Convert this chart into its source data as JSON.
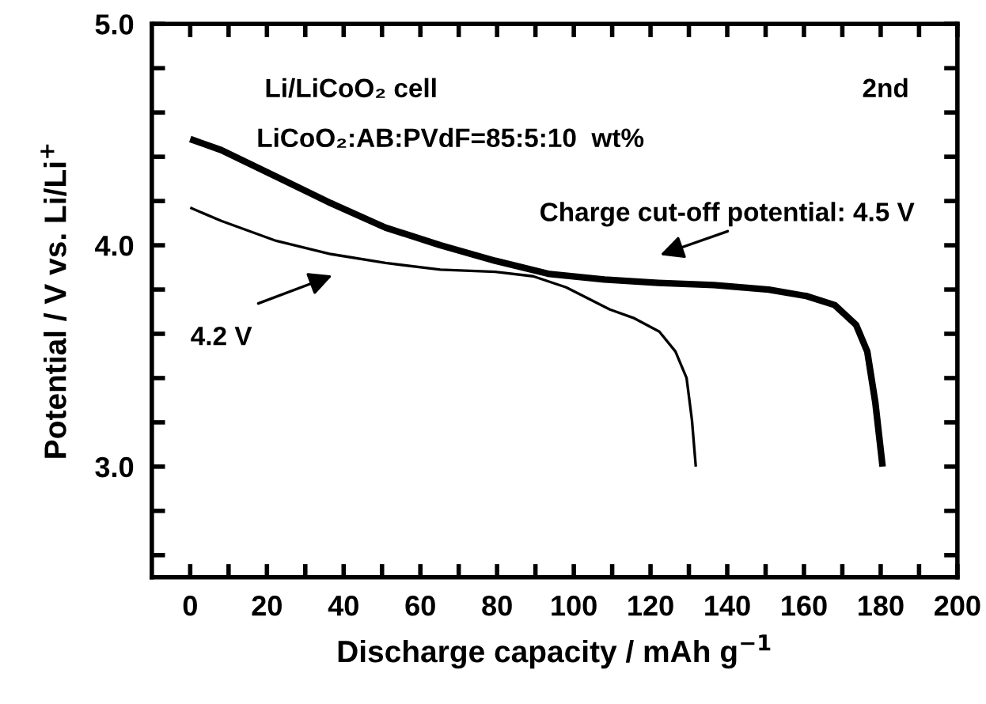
{
  "chart_data": {
    "type": "line",
    "xlabel": "Discharge capacity / mAh g$^{−1}$",
    "ylabel": "Potential / V vs. Li/Li$^{+}$",
    "xlim": [
      -10,
      200
    ],
    "xticks": [
      0,
      {
        "value": 10,
        "label": null
      },
      20,
      {
        "value": 30,
        "label": null
      },
      40,
      {
        "value": 50,
        "label": null
      },
      60,
      {
        "value": 70,
        "label": null
      },
      80,
      {
        "value": 90,
        "label": null
      },
      100,
      {
        "value": 110,
        "label": null
      },
      120,
      {
        "value": 130,
        "label": null
      },
      140,
      {
        "value": 150,
        "label": null
      },
      160,
      {
        "value": 170,
        "label": null
      },
      180,
      {
        "value": 190,
        "label": null
      },
      200
    ],
    "ylim": [
      2.5,
      5.0
    ],
    "yticks": [
      {
        "value": 2.6,
        "label": null
      },
      {
        "value": 2.8,
        "label": null
      },
      {
        "value": 3.0,
        "label": "3.0"
      },
      {
        "value": 3.2,
        "label": null
      },
      {
        "value": 3.4,
        "label": null
      },
      {
        "value": 3.6,
        "label": null
      },
      {
        "value": 3.8,
        "label": null
      },
      {
        "value": 4.0,
        "label": "4.0"
      },
      {
        "value": 4.2,
        "label": null
      },
      {
        "value": 4.4,
        "label": null
      },
      {
        "value": 4.6,
        "label": null
      },
      {
        "value": 4.8,
        "label": null
      },
      {
        "value": 5.0,
        "label": "5.0"
      }
    ],
    "grid": false,
    "legend": false,
    "marker": "none",
    "line_style": "solid",
    "series": [
      {
        "color": "#000000",
        "x": [
          0,
          8.1,
          22.4,
          36.7,
          50.9,
          65.2,
          79.5,
          93.7,
          108,
          122,
          136.5,
          150.8,
          160.8,
          168,
          173.6,
          176.5,
          178.6,
          180.5
        ],
        "values": [
          4.48,
          4.43,
          4.31,
          4.19,
          4.08,
          4.0,
          3.93,
          3.87,
          3.845,
          3.83,
          3.82,
          3.8,
          3.77,
          3.73,
          3.64,
          3.52,
          3.29,
          3.0
        ]
      },
      {
        "color": "#000000",
        "x": [
          0,
          8.1,
          22.4,
          36.7,
          50.9,
          65.2,
          79.5,
          89.4,
          98,
          103.7,
          109.4,
          115.8,
          122.3,
          126.5,
          129.4,
          130.8,
          131.8
        ],
        "values": [
          4.17,
          4.11,
          4.02,
          3.96,
          3.92,
          3.89,
          3.88,
          3.86,
          3.81,
          3.76,
          3.71,
          3.67,
          3.61,
          3.52,
          3.4,
          3.21,
          3.0
        ]
      }
    ],
    "annotations": [
      "Li/LiCoO₂ cell",
      "LiCoO₂:AB:PVdF=85:5:10  wt%",
      "2nd",
      "Charge cut-off potential: 4.5 V",
      "4.2 V"
    ]
  }
}
